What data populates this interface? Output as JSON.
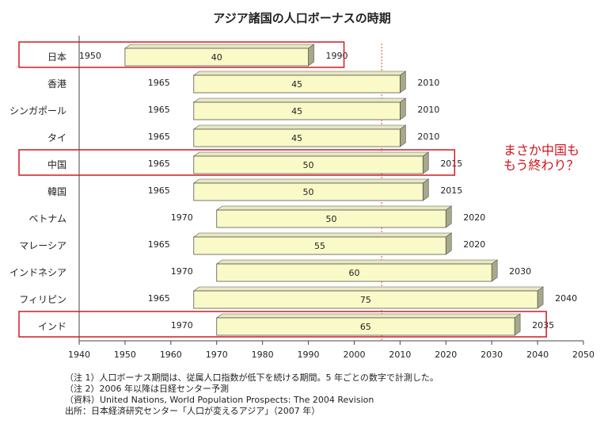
{
  "chart_data": {
    "type": "bar",
    "title": "アジア諸国の人口ボーナスの時期",
    "xlim": [
      1940,
      2050
    ],
    "x_ticks": [
      "1940",
      "1950",
      "1960",
      "1970",
      "1980",
      "1990",
      "2000",
      "2010",
      "2020",
      "2030",
      "2040",
      "2050"
    ],
    "reference_line_year": 2006,
    "categories": [
      "日本",
      "香港",
      "シンガポール",
      "タイ",
      "中国",
      "韓国",
      "ベトナム",
      "マレーシア",
      "インドネシア",
      "フィリピン",
      "インド"
    ],
    "series": [
      {
        "start": "1950",
        "end": "1990",
        "duration": "40",
        "highlighted": true
      },
      {
        "start": "1965",
        "end": "2010",
        "duration": "45",
        "highlighted": false
      },
      {
        "start": "1965",
        "end": "2010",
        "duration": "45",
        "highlighted": false
      },
      {
        "start": "1965",
        "end": "2010",
        "duration": "45",
        "highlighted": false
      },
      {
        "start": "1965",
        "end": "2015",
        "duration": "50",
        "highlighted": true
      },
      {
        "start": "1965",
        "end": "2015",
        "duration": "50",
        "highlighted": false
      },
      {
        "start": "1970",
        "end": "2020",
        "duration": "50",
        "highlighted": false
      },
      {
        "start": "1965",
        "end": "2020",
        "duration": "55",
        "highlighted": false
      },
      {
        "start": "1970",
        "end": "2030",
        "duration": "60",
        "highlighted": false
      },
      {
        "start": "1965",
        "end": "2040",
        "duration": "75",
        "highlighted": false
      },
      {
        "start": "1970",
        "end": "2035",
        "duration": "65",
        "highlighted": true
      }
    ],
    "annotation": "まさか中国も\nもう終わり？",
    "notes": [
      "（注 1）人口ボーナス期間は、従属人口指数が低下を続ける期間。5 年ごとの数字で計測した。",
      "（注 2）2006 年以降は日経センター予測",
      "（資料）United Nations, World Population Prospects: The 2004 Revision",
      "出所：日本経済研究センター「人口が変えるアジア」（2007 年）"
    ]
  },
  "colors": {
    "bar_fill": "#fafac8",
    "bar_side": "#a8a88a",
    "bar_stroke": "#555555",
    "highlight_box": "#d01a22",
    "reference_line": "#e05020",
    "annotation": "#d0141c"
  }
}
